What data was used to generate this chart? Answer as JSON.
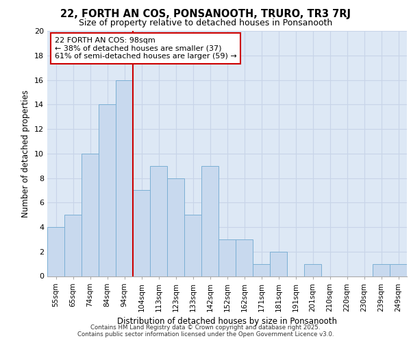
{
  "title1": "22, FORTH AN COS, PONSANOOTH, TRURO, TR3 7RJ",
  "title2": "Size of property relative to detached houses in Ponsanooth",
  "xlabel": "Distribution of detached houses by size in Ponsanooth",
  "ylabel": "Number of detached properties",
  "categories": [
    "55sqm",
    "65sqm",
    "74sqm",
    "84sqm",
    "94sqm",
    "104sqm",
    "113sqm",
    "123sqm",
    "133sqm",
    "142sqm",
    "152sqm",
    "162sqm",
    "171sqm",
    "181sqm",
    "191sqm",
    "201sqm",
    "210sqm",
    "220sqm",
    "230sqm",
    "239sqm",
    "249sqm"
  ],
  "values": [
    4,
    5,
    10,
    14,
    16,
    7,
    9,
    8,
    5,
    9,
    3,
    3,
    1,
    2,
    0,
    1,
    0,
    0,
    0,
    1,
    1
  ],
  "bar_color": "#c8d9ee",
  "bar_edge_color": "#7bafd4",
  "vline_x": 4.5,
  "vline_color": "#cc0000",
  "annotation_text": "22 FORTH AN COS: 98sqm\n← 38% of detached houses are smaller (37)\n61% of semi-detached houses are larger (59) →",
  "annotation_box_color": "white",
  "annotation_box_edge_color": "#cc0000",
  "ylim": [
    0,
    20
  ],
  "yticks": [
    0,
    2,
    4,
    6,
    8,
    10,
    12,
    14,
    16,
    18,
    20
  ],
  "grid_color": "#c8d4e8",
  "background_color": "#dde8f5",
  "footer1": "Contains HM Land Registry data © Crown copyright and database right 2025.",
  "footer2": "Contains public sector information licensed under the Open Government Licence v3.0."
}
